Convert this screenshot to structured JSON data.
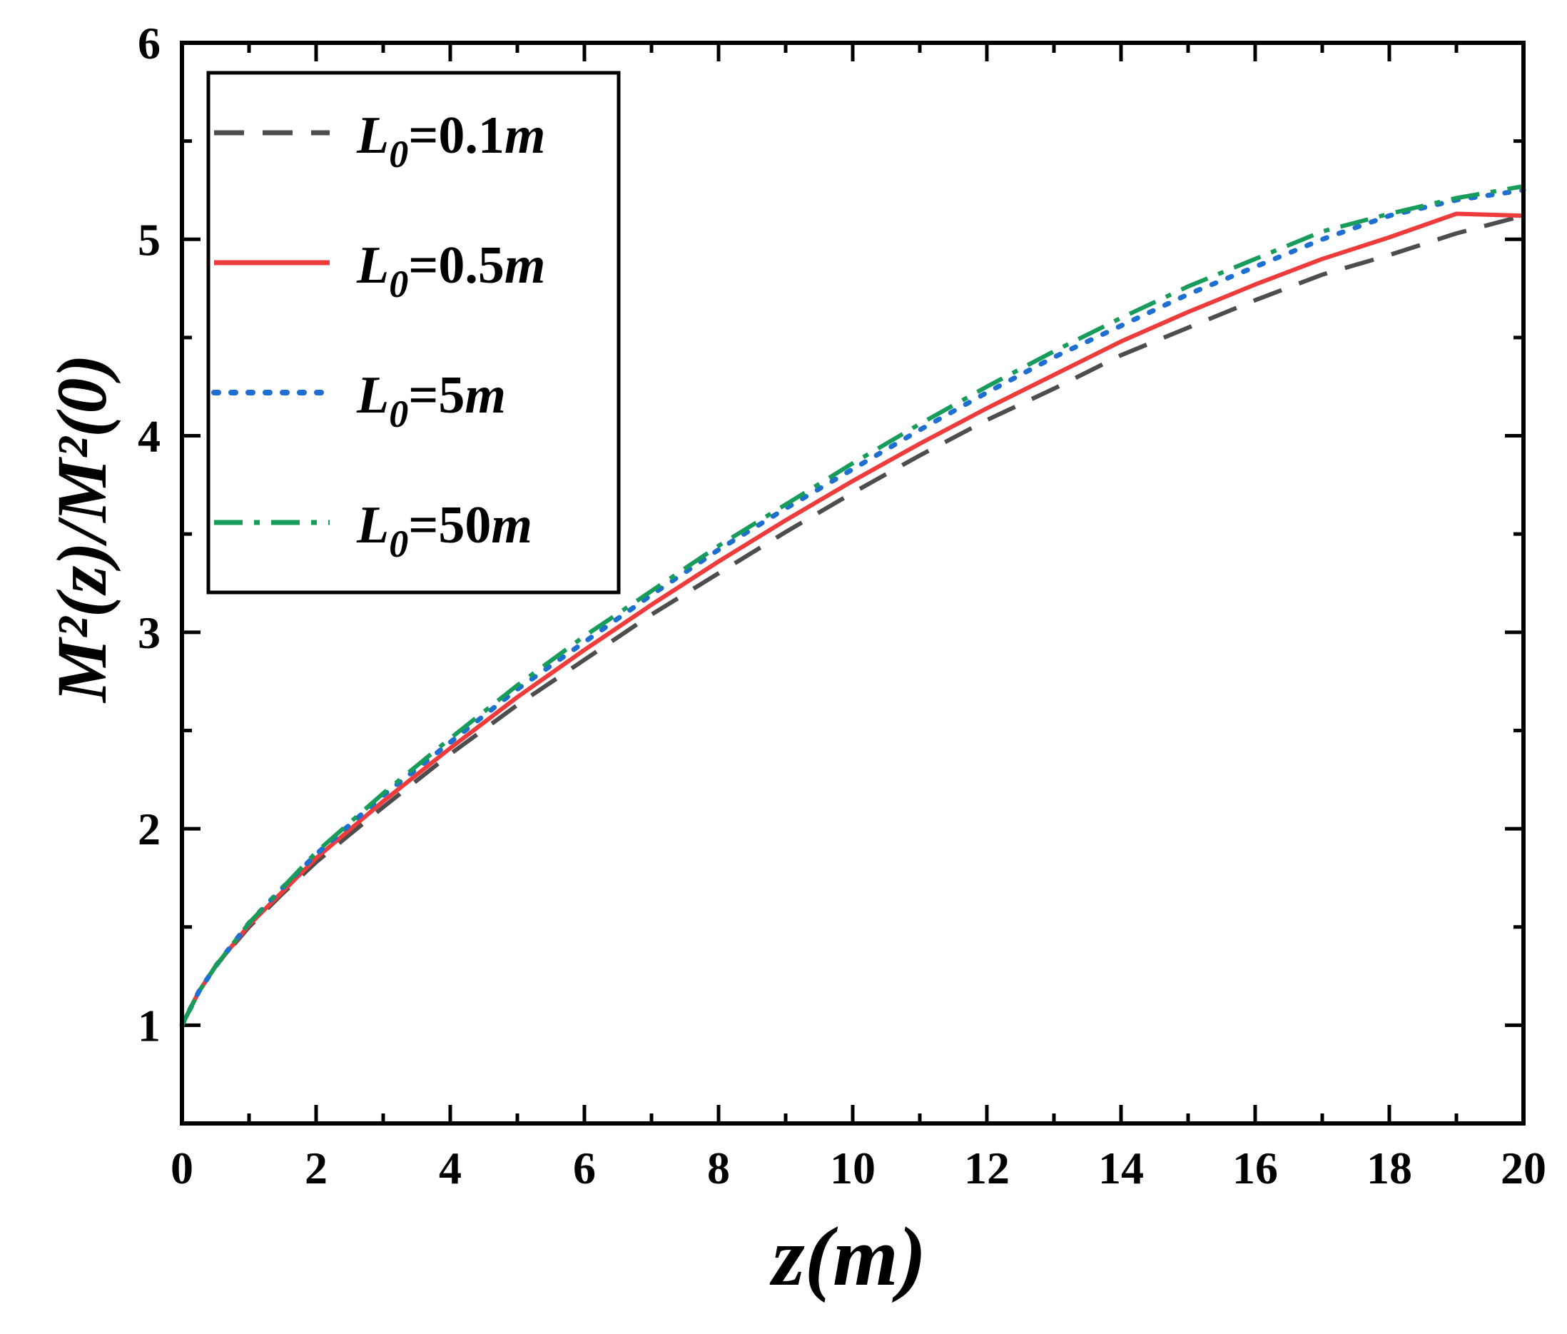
{
  "chart_data": {
    "type": "line",
    "title": "",
    "xlabel": "z(m)",
    "ylabel": "M²(z)/M²(0)",
    "xlim": [
      0,
      20
    ],
    "ylim": [
      0.5,
      6
    ],
    "x_ticks": [
      0,
      2,
      4,
      6,
      8,
      10,
      12,
      14,
      16,
      18,
      20
    ],
    "x_tick_labels": [
      "0",
      "2",
      "4",
      "6",
      "8",
      "10",
      "12",
      "14",
      "16",
      "18",
      "20"
    ],
    "y_ticks": [
      1,
      2,
      3,
      4,
      5,
      6
    ],
    "y_tick_labels": [
      "1",
      "2",
      "3",
      "4",
      "5",
      "6"
    ],
    "grid": false,
    "legend_position": "top-left",
    "series": [
      {
        "name": "L0=0.1m",
        "label": {
          "sym": "L",
          "sub": "0",
          "val": "=0.1",
          "unit": "m"
        },
        "color": "#4d4d4d",
        "style": "dashed",
        "x": [
          0,
          0.25,
          0.5,
          1,
          1.5,
          2,
          3,
          4,
          5,
          6,
          7,
          8,
          9,
          10,
          11,
          12,
          13,
          14,
          15,
          16,
          17,
          18,
          19,
          20
        ],
        "values": [
          1.0,
          1.17,
          1.3,
          1.5,
          1.67,
          1.83,
          2.11,
          2.38,
          2.63,
          2.86,
          3.09,
          3.3,
          3.51,
          3.71,
          3.9,
          4.08,
          4.24,
          4.41,
          4.55,
          4.69,
          4.82,
          4.92,
          5.03,
          5.12
        ]
      },
      {
        "name": "L0=0.5m",
        "label": {
          "sym": "L",
          "sub": "0",
          "val": "=0.5",
          "unit": "m"
        },
        "color": "#ee3b3b",
        "style": "solid",
        "x": [
          0,
          0.25,
          0.5,
          1,
          1.5,
          2,
          3,
          4,
          5,
          6,
          7,
          8,
          9,
          10,
          11,
          12,
          13,
          14,
          15,
          16,
          17,
          18,
          19,
          20
        ],
        "values": [
          1.0,
          1.17,
          1.3,
          1.51,
          1.68,
          1.85,
          2.14,
          2.41,
          2.67,
          2.91,
          3.14,
          3.36,
          3.57,
          3.77,
          3.96,
          4.14,
          4.31,
          4.48,
          4.63,
          4.77,
          4.9,
          5.01,
          5.13,
          5.12
        ]
      },
      {
        "name": "L0=5m",
        "label": {
          "sym": "L",
          "sub": "0",
          "val": "=5",
          "unit": "m"
        },
        "color": "#1f6fd1",
        "style": "dotted",
        "x": [
          0,
          0.25,
          0.5,
          1,
          1.5,
          2,
          3,
          4,
          5,
          6,
          7,
          8,
          9,
          10,
          11,
          12,
          13,
          14,
          15,
          16,
          17,
          18,
          19,
          20
        ],
        "values": [
          1.0,
          1.17,
          1.3,
          1.52,
          1.7,
          1.87,
          2.17,
          2.44,
          2.71,
          2.95,
          3.19,
          3.42,
          3.63,
          3.83,
          4.03,
          4.22,
          4.4,
          4.56,
          4.72,
          4.86,
          5.0,
          5.12,
          5.2,
          5.25
        ]
      },
      {
        "name": "L0=50m",
        "label": {
          "sym": "L",
          "sub": "0",
          "val": "=50",
          "unit": "m"
        },
        "color": "#179c5a",
        "style": "dashdot",
        "x": [
          0,
          0.25,
          0.5,
          1,
          1.5,
          2,
          3,
          4,
          5,
          6,
          7,
          8,
          9,
          10,
          11,
          12,
          13,
          14,
          15,
          16,
          17,
          18,
          19,
          20
        ],
        "values": [
          1.0,
          1.17,
          1.3,
          1.52,
          1.7,
          1.88,
          2.18,
          2.46,
          2.73,
          2.98,
          3.21,
          3.44,
          3.65,
          3.86,
          4.06,
          4.25,
          4.43,
          4.6,
          4.76,
          4.9,
          5.04,
          5.13,
          5.21,
          5.27
        ]
      }
    ]
  }
}
